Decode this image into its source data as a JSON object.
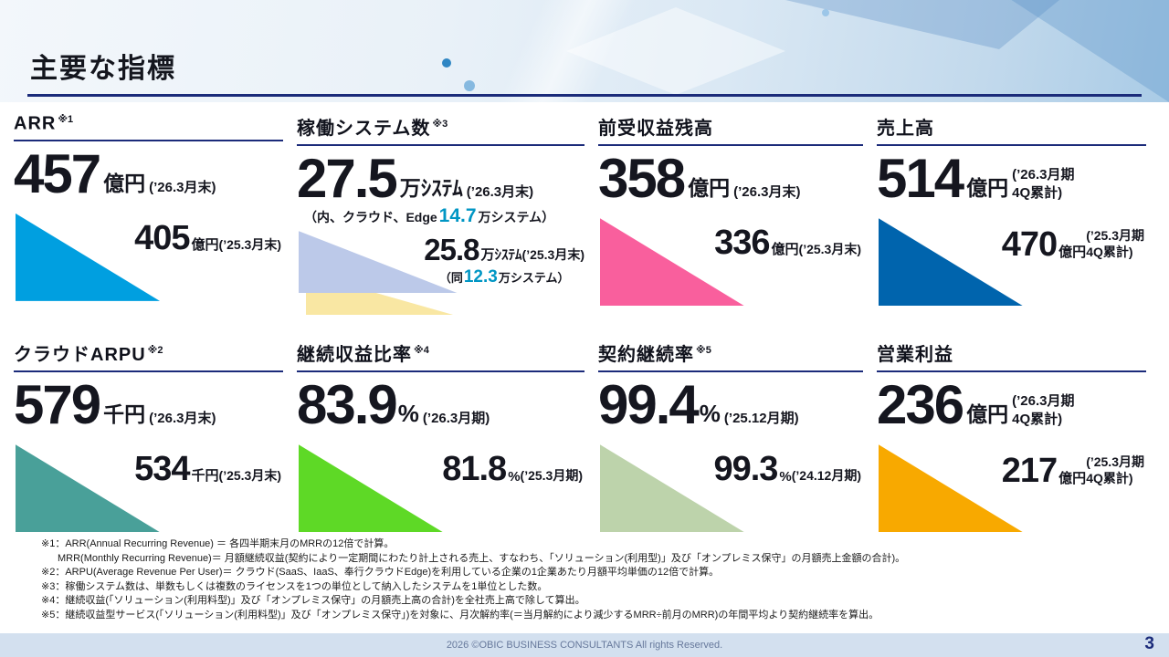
{
  "slide": {
    "title": "主要な指標",
    "page_number": "3",
    "footer_text": "2026  ©OBIC BUSINESS CONSULTANTS All rights Reserved."
  },
  "cards": [
    {
      "title": "ARR",
      "note": "※1",
      "value": "457",
      "unit": "億円",
      "period": "(’26.3月末)",
      "prev_value": "405",
      "prev_unit": "億円",
      "prev_period": "(’25.3月末)",
      "color": "#009FE0"
    },
    {
      "title": "稼働システム数",
      "note": "※3",
      "value": "27.5",
      "unit": "万ｼｽﾃﾑ",
      "period": "(’26.3月末)",
      "sub_prefix": "（内、クラウド、Edge",
      "sub_highlight": "14.7",
      "sub_suffix": "万システム）",
      "prev_value": "25.8",
      "prev_unit": "万ｼｽﾃﾑ",
      "prev_period": "(’25.3月末)",
      "prev_sub_prefix": "（同",
      "prev_sub_highlight": "12.3",
      "prev_sub_suffix": "万システム）",
      "color": "#BCC9E9",
      "color2": "#F9E7A3",
      "highlight_color": "#0096C4"
    },
    {
      "title": "前受収益残高",
      "note": "",
      "value": "358",
      "unit": "億円",
      "period": "(’26.3月末)",
      "prev_value": "336",
      "prev_unit": "億円",
      "prev_period": "(’25.3月末)",
      "color": "#F95F9D"
    },
    {
      "title": "売上高",
      "note": "",
      "value": "514",
      "unit": "億円",
      "period": "(’26.3月期",
      "period2": "4Q累計)",
      "prev_value": "470",
      "prev_unit": "億円",
      "prev_period": "(’25.3月期",
      "prev_period2": "4Q累計)",
      "color": "#0064AD"
    },
    {
      "title": "クラウドARPU",
      "note": "※2",
      "value": "579",
      "unit": "千円",
      "period": "(’26.3月末)",
      "prev_value": "534",
      "prev_unit": "千円",
      "prev_period": "(’25.3月末)",
      "color": "#49A099"
    },
    {
      "title": "継続収益比率",
      "note": "※4",
      "value": "83.9",
      "unit": "%",
      "period": "(’26.3月期)",
      "prev_value": "81.8",
      "prev_unit": "%",
      "prev_period": "(’25.3月期)",
      "color": "#5ED926"
    },
    {
      "title": "契約継続率",
      "note": "※5",
      "value": "99.4",
      "unit": "%",
      "period": "(’25.12月期)",
      "prev_value": "99.3",
      "prev_unit": "%",
      "prev_period": "(’24.12月期)",
      "color": "#BDD3AB"
    },
    {
      "title": "営業利益",
      "note": "",
      "value": "236",
      "unit": "億円",
      "period": "(’26.3月期",
      "period2": "4Q累計)",
      "prev_value": "217",
      "prev_unit": "億円",
      "prev_period": "(’25.3月期",
      "prev_period2": "4Q累計)",
      "color": "#F8A900"
    }
  ],
  "footnotes": [
    {
      "text": "※1：ARR(Annual Recurring Revenue) ＝ 各四半期末月のMRRの12倍で計算。"
    },
    {
      "text": "MRR(Monthly Recurring Revenue)＝ 月額継続収益(契約により一定期間にわたり計上される売上、すなわち、「ソリューション(利用型)」及び「オンプレミス保守」の月額売上金額の合計)。"
    },
    {
      "text": "※2：ARPU(Average Revenue Per User)＝ クラウド(SaaS、IaaS、奉行クラウドEdge)を利用している企業の1企業あたり月額平均単価の12倍で計算。"
    },
    {
      "text": "※3：稼働システム数は、単数もしくは複数のライセンスを1つの単位として納入したシステムを1単位とした数。"
    },
    {
      "text": "※4：継続収益(「ソリューション(利用料型)」及び「オンプレミス保守」の月額売上高の合計)を全社売上高で除して算出。"
    },
    {
      "text": "※5：継続収益型サービス(「ソリューション(利用料型)」及び「オンプレミス保守」)を対象に、月次解約率(＝当月解約により減少するMRR÷前月のMRR)の年間平均より契約継続率を算出。"
    }
  ]
}
